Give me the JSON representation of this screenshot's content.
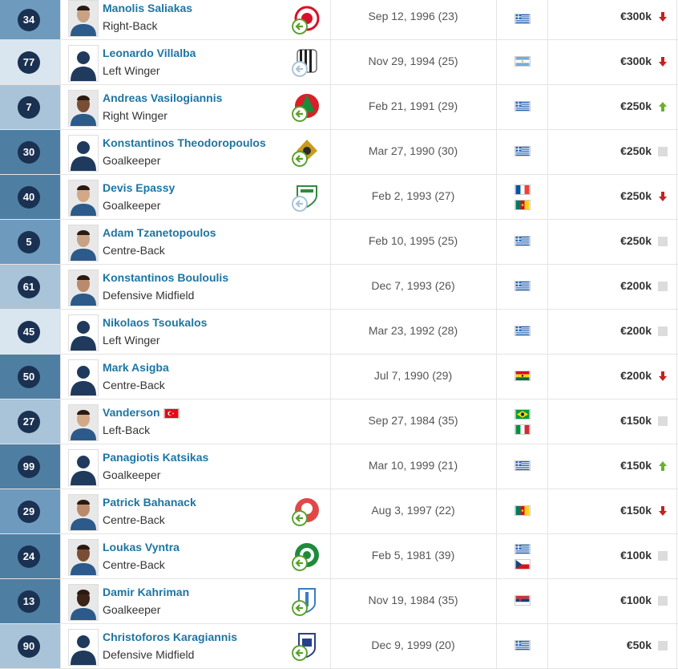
{
  "players": [
    {
      "number": "34",
      "name": "Manolis Saliakas",
      "position": "Right-Back",
      "born": "Sep 12, 1996 (23)",
      "value": "€300k",
      "trend": "down",
      "flags": [
        "greece"
      ],
      "club": "olympiacos",
      "badge": "green",
      "photo": "photo"
    },
    {
      "number": "77",
      "name": "Leonardo Villalba",
      "position": "Left Winger",
      "born": "Nov 29, 1994 (25)",
      "value": "€300k",
      "trend": "down",
      "flags": [
        "argentina"
      ],
      "club": "stripes",
      "badge": "grey",
      "photo": "silhouette"
    },
    {
      "number": "7",
      "name": "Andreas Vasilogiannis",
      "position": "Right Winger",
      "born": "Feb 21, 1991 (29)",
      "value": "€250k",
      "trend": "up",
      "flags": [
        "greece"
      ],
      "club": "redgreen",
      "badge": "green",
      "photo": "photo"
    },
    {
      "number": "30",
      "name": "Konstantinos Theodoropoulos",
      "position": "Goalkeeper",
      "born": "Mar 27, 1990 (30)",
      "value": "€250k",
      "trend": "none",
      "flags": [
        "greece"
      ],
      "club": "eagle",
      "badge": "green",
      "photo": "silhouette"
    },
    {
      "number": "40",
      "name": "Devis Epassy",
      "position": "Goalkeeper",
      "born": "Feb 2, 1993 (27)",
      "value": "€250k",
      "trend": "down",
      "flags": [
        "france",
        "cameroon"
      ],
      "club": "greenshield",
      "badge": "grey",
      "photo": "photo"
    },
    {
      "number": "5",
      "name": "Adam Tzanetopoulos",
      "position": "Centre-Back",
      "born": "Feb 10, 1995 (25)",
      "value": "€250k",
      "trend": "none",
      "flags": [
        "greece"
      ],
      "club": "",
      "badge": "",
      "photo": "photo"
    },
    {
      "number": "61",
      "name": "Konstantinos Bouloulis",
      "position": "Defensive Midfield",
      "born": "Dec 7, 1993 (26)",
      "value": "€200k",
      "trend": "none",
      "flags": [
        "greece"
      ],
      "club": "",
      "badge": "",
      "photo": "photo"
    },
    {
      "number": "45",
      "name": "Nikolaos Tsoukalos",
      "position": "Left Winger",
      "born": "Mar 23, 1992 (28)",
      "value": "€200k",
      "trend": "none",
      "flags": [
        "greece"
      ],
      "club": "",
      "badge": "",
      "photo": "silhouette"
    },
    {
      "number": "50",
      "name": "Mark Asigba",
      "position": "Centre-Back",
      "born": "Jul 7, 1990 (29)",
      "value": "€200k",
      "trend": "down",
      "flags": [
        "ghana"
      ],
      "club": "",
      "badge": "",
      "photo": "silhouette"
    },
    {
      "number": "27",
      "name": "Vanderson",
      "position": "Left-Back",
      "born": "Sep 27, 1984 (35)",
      "value": "€150k",
      "trend": "none",
      "flags": [
        "brazil",
        "italy"
      ],
      "club": "",
      "badge": "",
      "photo": "photo",
      "extra_flag": "turkey"
    },
    {
      "number": "99",
      "name": "Panagiotis Katsikas",
      "position": "Goalkeeper",
      "born": "Mar 10, 1999 (21)",
      "value": "€150k",
      "trend": "up",
      "flags": [
        "greece"
      ],
      "club": "",
      "badge": "",
      "photo": "silhouette"
    },
    {
      "number": "29",
      "name": "Patrick Bahanack",
      "position": "Centre-Back",
      "born": "Aug 3, 1997 (22)",
      "value": "€150k",
      "trend": "down",
      "flags": [
        "cameroon"
      ],
      "club": "redround",
      "badge": "green",
      "photo": "photo"
    },
    {
      "number": "24",
      "name": "Loukas Vyntra",
      "position": "Centre-Back",
      "born": "Feb 5, 1981 (39)",
      "value": "€100k",
      "trend": "none",
      "flags": [
        "greece",
        "czech"
      ],
      "club": "clover",
      "badge": "green",
      "photo": "photo"
    },
    {
      "number": "13",
      "name": "Damir Kahriman",
      "position": "Goalkeeper",
      "born": "Nov 19, 1984 (35)",
      "value": "€100k",
      "trend": "none",
      "flags": [
        "serbia"
      ],
      "club": "bluefigure",
      "badge": "green",
      "photo": "photo"
    },
    {
      "number": "90",
      "name": "Christoforos Karagiannis",
      "position": "Defensive Midfield",
      "born": "Dec 9, 1999 (20)",
      "value": "€50k",
      "trend": "none",
      "flags": [
        "greece"
      ],
      "club": "blueshield",
      "badge": "green",
      "photo": "silhouette"
    }
  ]
}
